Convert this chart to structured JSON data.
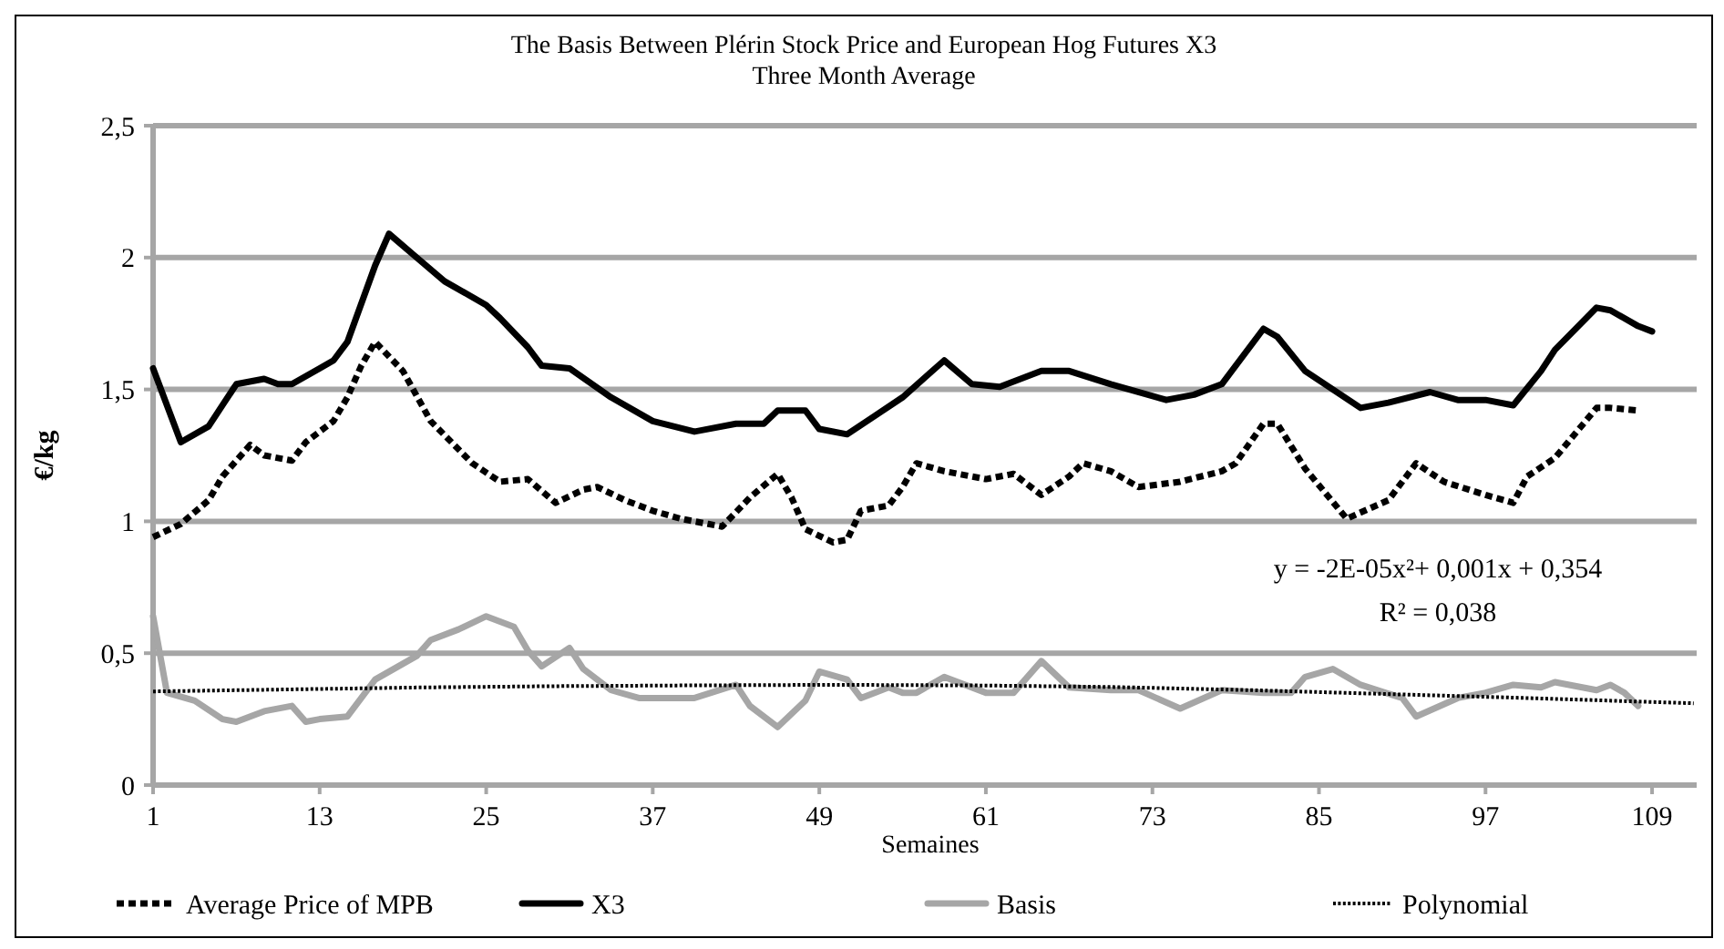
{
  "chart_data": {
    "type": "line",
    "title": "The Basis Between Plérin Stock Price and European Hog Futures X3",
    "subtitle": "Three Month Average",
    "xlabel": "Semaines",
    "ylabel": "€/kg",
    "xlim": [
      1,
      113
    ],
    "xticks": [
      1,
      13,
      25,
      37,
      49,
      61,
      73,
      85,
      97,
      109
    ],
    "ylim": [
      0,
      2.5
    ],
    "yticks": [
      0,
      {
        "value": 0.5,
        "label": "0,5"
      },
      1,
      {
        "value": 1.5,
        "label": "1,5"
      },
      2,
      {
        "value": 2.5,
        "label": "2,5"
      }
    ],
    "grid": "y",
    "legend": "bottom",
    "annotations": [
      "y = -2E-05x²+ 0,001x + 0,354",
      "R² = 0,038"
    ],
    "series": [
      {
        "name": "Average Price of MPB",
        "color": "#000000",
        "line_style": "dashed",
        "x": [
          1,
          3,
          5,
          6,
          8,
          9,
          11,
          12,
          14,
          15,
          16,
          17,
          19,
          21,
          24,
          26,
          28,
          30,
          32,
          33,
          35,
          37,
          39,
          41,
          42,
          44,
          46,
          47,
          48,
          50,
          51,
          52,
          54,
          55,
          56,
          58,
          61,
          63,
          65,
          67,
          68,
          70,
          72,
          75,
          78,
          79,
          81,
          82,
          84,
          87,
          90,
          92,
          94,
          97,
          99,
          100,
          102,
          105,
          106,
          108
        ],
        "values": [
          0.94,
          0.99,
          1.08,
          1.17,
          1.29,
          1.25,
          1.23,
          1.3,
          1.38,
          1.47,
          1.59,
          1.68,
          1.57,
          1.38,
          1.22,
          1.15,
          1.16,
          1.07,
          1.12,
          1.13,
          1.08,
          1.04,
          1.01,
          0.99,
          0.98,
          1.09,
          1.18,
          1.09,
          0.97,
          0.92,
          0.93,
          1.04,
          1.06,
          1.13,
          1.22,
          1.19,
          1.16,
          1.18,
          1.1,
          1.17,
          1.22,
          1.19,
          1.13,
          1.15,
          1.19,
          1.22,
          1.37,
          1.37,
          1.2,
          1.01,
          1.08,
          1.22,
          1.15,
          1.1,
          1.07,
          1.17,
          1.24,
          1.43,
          1.43,
          1.42
        ]
      },
      {
        "name": "X3",
        "color": "#000000",
        "line_style": "solid",
        "x": [
          1,
          3,
          5,
          7,
          9,
          10,
          11,
          13,
          14,
          15,
          17,
          18,
          20,
          22,
          25,
          26,
          28,
          29,
          31,
          34,
          37,
          40,
          43,
          45,
          46,
          48,
          49,
          51,
          53,
          55,
          58,
          60,
          62,
          65,
          67,
          70,
          74,
          76,
          78,
          81,
          82,
          84,
          88,
          90,
          93,
          95,
          97,
          99,
          101,
          102,
          105,
          106,
          108,
          109
        ],
        "values": [
          1.58,
          1.3,
          1.36,
          1.52,
          1.54,
          1.52,
          1.52,
          1.58,
          1.61,
          1.68,
          1.97,
          2.09,
          2.0,
          1.91,
          1.82,
          1.77,
          1.66,
          1.59,
          1.58,
          1.47,
          1.38,
          1.34,
          1.37,
          1.37,
          1.42,
          1.42,
          1.35,
          1.33,
          1.4,
          1.47,
          1.61,
          1.52,
          1.51,
          1.57,
          1.57,
          1.52,
          1.46,
          1.48,
          1.52,
          1.73,
          1.7,
          1.57,
          1.43,
          1.45,
          1.49,
          1.46,
          1.46,
          1.44,
          1.57,
          1.65,
          1.81,
          1.8,
          1.74,
          1.72
        ]
      },
      {
        "name": "Basis",
        "color": "#a6a6a6",
        "line_style": "solid",
        "x": [
          1,
          2,
          4,
          6,
          7,
          9,
          11,
          12,
          13,
          15,
          17,
          20,
          21,
          23,
          25,
          27,
          28,
          29,
          31,
          32,
          34,
          36,
          40,
          43,
          44,
          46,
          48,
          49,
          51,
          52,
          54,
          55,
          56,
          58,
          61,
          63,
          65,
          67,
          70,
          72,
          75,
          78,
          81,
          83,
          84,
          86,
          88,
          91,
          92,
          95,
          97,
          99,
          101,
          102,
          105,
          106,
          107,
          108
        ],
        "values": [
          0.64,
          0.35,
          0.32,
          0.25,
          0.24,
          0.28,
          0.3,
          0.24,
          0.25,
          0.26,
          0.4,
          0.49,
          0.55,
          0.59,
          0.64,
          0.6,
          0.51,
          0.45,
          0.52,
          0.44,
          0.36,
          0.33,
          0.33,
          0.38,
          0.3,
          0.22,
          0.32,
          0.43,
          0.4,
          0.33,
          0.37,
          0.35,
          0.35,
          0.41,
          0.35,
          0.35,
          0.47,
          0.37,
          0.36,
          0.36,
          0.29,
          0.36,
          0.35,
          0.35,
          0.41,
          0.44,
          0.38,
          0.33,
          0.26,
          0.33,
          0.35,
          0.38,
          0.37,
          0.39,
          0.36,
          0.38,
          0.35,
          0.3
        ]
      },
      {
        "name": "Polynomial",
        "color": "#000000",
        "line_style": "dotted",
        "x": [
          1,
          10,
          20,
          30,
          40,
          50,
          60,
          70,
          80,
          90,
          100,
          112
        ],
        "values": [
          0.355,
          0.362,
          0.37,
          0.375,
          0.378,
          0.38,
          0.378,
          0.372,
          0.36,
          0.345,
          0.33,
          0.31
        ]
      }
    ]
  }
}
